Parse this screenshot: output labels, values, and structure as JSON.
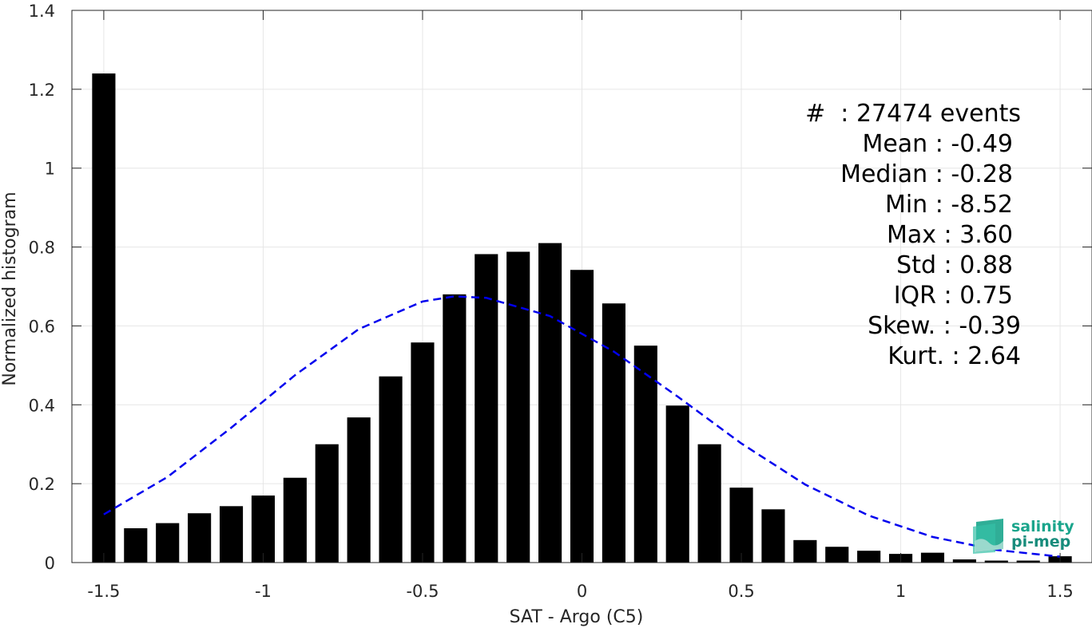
{
  "chart_data": {
    "type": "bar",
    "xlabel": "SAT - Argo (C5)",
    "ylabel": "Normalized histogram",
    "xlim": [
      -1.6,
      1.6
    ],
    "ylim": [
      0,
      1.4
    ],
    "xticks": [
      -1.5,
      -1,
      -0.5,
      0,
      0.5,
      1,
      1.5
    ],
    "xtick_labels": [
      "-1.5",
      "-1",
      "-0.5",
      "0",
      "0.5",
      "1",
      "1.5"
    ],
    "yticks": [
      0,
      0.2,
      0.4,
      0.6,
      0.8,
      1,
      1.2,
      1.4
    ],
    "ytick_labels": [
      "0",
      "0.2",
      "0.4",
      "0.6",
      "0.8",
      "1",
      "1.2",
      "1.4"
    ],
    "grid": true,
    "bar_color": "#000000",
    "bars": {
      "x": [
        -1.5,
        -1.4,
        -1.3,
        -1.2,
        -1.1,
        -1.0,
        -0.9,
        -0.8,
        -0.7,
        -0.6,
        -0.5,
        -0.4,
        -0.3,
        -0.2,
        -0.1,
        0.0,
        0.1,
        0.2,
        0.3,
        0.4,
        0.5,
        0.6,
        0.7,
        0.8,
        0.9,
        1.0,
        1.1,
        1.2,
        1.3,
        1.4,
        1.5
      ],
      "values": [
        1.24,
        0.087,
        0.1,
        0.125,
        0.143,
        0.17,
        0.215,
        0.3,
        0.368,
        0.472,
        0.558,
        0.68,
        0.782,
        0.788,
        0.81,
        0.742,
        0.657,
        0.55,
        0.398,
        0.3,
        0.19,
        0.135,
        0.057,
        0.04,
        0.03,
        0.022,
        0.025,
        0.008,
        0.005,
        0.005,
        0.016
      ]
    },
    "fit_curve": {
      "style": "dashed",
      "color": "#0000ee",
      "mean": -0.39,
      "peak": 0.675,
      "x": [
        -1.5,
        -1.3,
        -1.1,
        -0.9,
        -0.7,
        -0.5,
        -0.4,
        -0.3,
        -0.1,
        0.1,
        0.3,
        0.5,
        0.7,
        0.9,
        1.1,
        1.3,
        1.5
      ],
      "y": [
        0.122,
        0.217,
        0.342,
        0.475,
        0.592,
        0.662,
        0.675,
        0.671,
        0.625,
        0.535,
        0.421,
        0.302,
        0.198,
        0.119,
        0.065,
        0.032,
        0.015
      ]
    }
  },
  "stats": [
    {
      "label": "#  : 27474 events"
    },
    {
      "label": "Mean : -0.49"
    },
    {
      "label": "Median : -0.28"
    },
    {
      "label": "Min : -8.52"
    },
    {
      "label": "Max : 3.60"
    },
    {
      "label": "Std : 0.88"
    },
    {
      "label": "IQR : 0.75"
    },
    {
      "label": "Skew. : -0.39"
    },
    {
      "label": "Kurt. : 2.64"
    }
  ],
  "logo": {
    "line1": "salinity",
    "line2": "pi-mep"
  }
}
